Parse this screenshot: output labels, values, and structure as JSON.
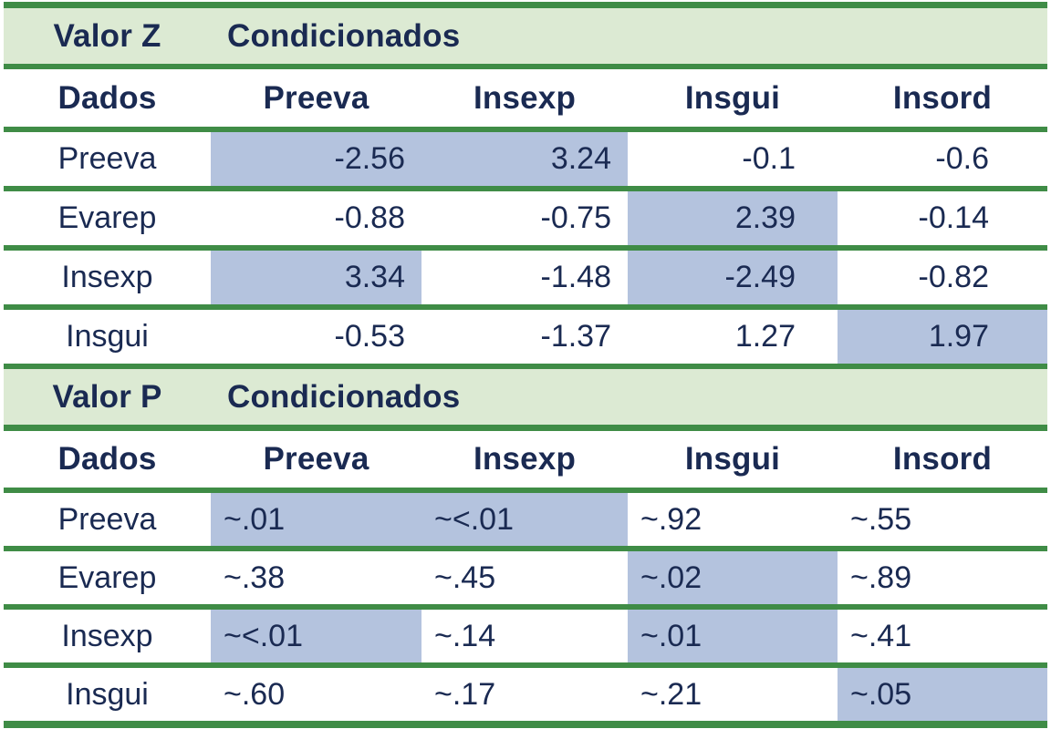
{
  "colors": {
    "rule_green": "#3f8c46",
    "band_green": "#dcead3",
    "highlight_blue": "#b4c3de",
    "text_navy": "#1a2a52"
  },
  "tables": [
    {
      "title": "Valor Z",
      "subtitle": "Condicionados",
      "columns": [
        "Dados",
        "Preeva",
        "Insexp",
        "Insgui",
        "Insord"
      ],
      "value_align": "right",
      "rows": [
        {
          "label": "Preeva",
          "values": [
            "-2.56",
            "3.24",
            "-0.1",
            "-0.6"
          ],
          "highlight": [
            true,
            true,
            false,
            false
          ]
        },
        {
          "label": "Evarep",
          "values": [
            "-0.88",
            "-0.75",
            "2.39",
            "-0.14"
          ],
          "highlight": [
            false,
            false,
            true,
            false
          ]
        },
        {
          "label": "Insexp",
          "values": [
            "3.34",
            "-1.48",
            "-2.49",
            "-0.82"
          ],
          "highlight": [
            true,
            false,
            true,
            false
          ]
        },
        {
          "label": "Insgui",
          "values": [
            "-0.53",
            "-1.37",
            "1.27",
            "1.97"
          ],
          "highlight": [
            false,
            false,
            false,
            true
          ]
        }
      ]
    },
    {
      "title": "Valor P",
      "subtitle": "Condicionados",
      "columns": [
        "Dados",
        "Preeva",
        "Insexp",
        "Insgui",
        "Insord"
      ],
      "value_align": "left",
      "rows": [
        {
          "label": "Preeva",
          "values": [
            "~.01",
            "~<.01",
            "~.92",
            "~.55"
          ],
          "highlight": [
            true,
            true,
            false,
            false
          ]
        },
        {
          "label": "Evarep",
          "values": [
            "~.38",
            "~.45",
            "~.02",
            "~.89"
          ],
          "highlight": [
            false,
            false,
            true,
            false
          ]
        },
        {
          "label": "Insexp",
          "values": [
            "~<.01",
            "~.14",
            "~.01",
            "~.41"
          ],
          "highlight": [
            true,
            false,
            true,
            false
          ]
        },
        {
          "label": "Insgui",
          "values": [
            "~.60",
            "~.17",
            "~.21",
            "~.05"
          ],
          "highlight": [
            false,
            false,
            false,
            true
          ]
        }
      ]
    }
  ]
}
